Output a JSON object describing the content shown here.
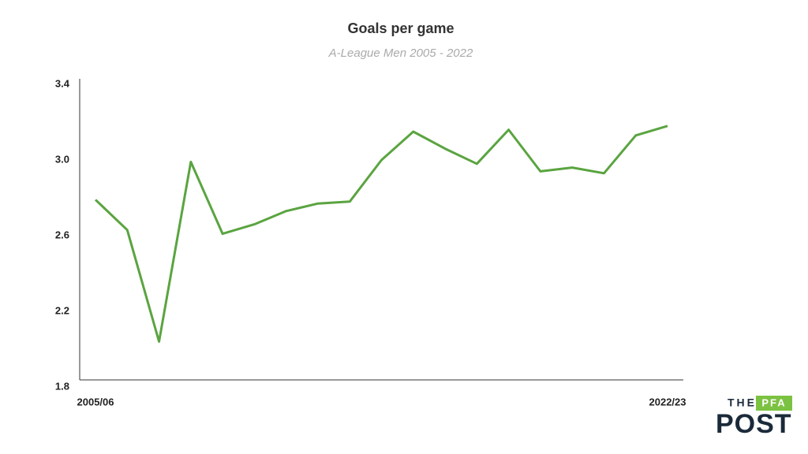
{
  "chart_data": {
    "type": "line",
    "title": "Goals per game",
    "subtitle": "A-League Men 2005 - 2022",
    "categories": [
      "2005/06",
      null,
      null,
      null,
      null,
      null,
      null,
      null,
      null,
      null,
      null,
      null,
      null,
      null,
      null,
      null,
      null,
      null,
      "2022/23"
    ],
    "values": [
      2.79,
      2.63,
      2.04,
      2.99,
      2.61,
      2.66,
      2.73,
      2.77,
      2.78,
      3.0,
      3.15,
      3.06,
      2.98,
      3.16,
      2.94,
      2.96,
      2.93,
      3.13,
      3.18
    ],
    "color": "#5aa440",
    "ylim": [
      1.8,
      3.4
    ],
    "yticks": [
      {
        "value": 1.8,
        "label": "1.8"
      },
      2.2,
      2.6,
      {
        "value": 3,
        "label": "3.0"
      },
      3.4
    ],
    "grid": false
  },
  "logo": {
    "the": "THE",
    "pfa": "PFA",
    "post": "POST"
  }
}
